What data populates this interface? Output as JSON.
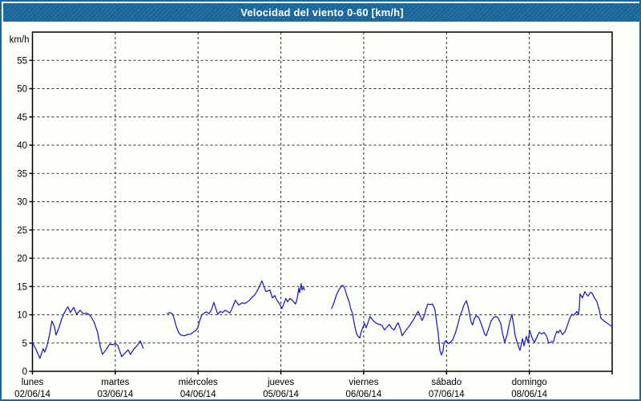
{
  "window": {
    "title": "Velocidad del viento 0-60 [km/h]"
  },
  "colors": {
    "titlebar_bg": "#19689b",
    "frame_border": "#19689b",
    "page_background": "#fcfffa",
    "plot_background": "#fcfffa",
    "axis": "#000000",
    "grid": "#2a2a2a",
    "line": "#2222c2",
    "title_text": "#ffffff",
    "label_text": "#000000"
  },
  "chart_data": {
    "type": "line",
    "title": "Velocidad del viento 0-60 [km/h]",
    "ylabel": "km/h",
    "xlabel": "",
    "ylim": [
      0,
      60
    ],
    "xlim_days": [
      0,
      7
    ],
    "grid": "dashed, horizontal every 5 km/h (5-55), vertical at each day boundary",
    "legend": "none",
    "y_ticks": [
      0,
      5,
      10,
      15,
      20,
      25,
      30,
      35,
      40,
      45,
      50,
      55
    ],
    "x_days": [
      {
        "name": "lunes",
        "date": "02/06/14"
      },
      {
        "name": "martes",
        "date": "03/06/14"
      },
      {
        "name": "miércoles",
        "date": "04/06/14"
      },
      {
        "name": "jueves",
        "date": "05/06/14"
      },
      {
        "name": "viernes",
        "date": "06/06/14"
      },
      {
        "name": "sábado",
        "date": "07/06/14"
      },
      {
        "name": "domingo",
        "date": "08/06/14"
      }
    ],
    "x_unit": "time in days, 0 = lunes 02/06/14 00:00",
    "series": [
      {
        "name": "velocidad del viento",
        "color": "#2222c2",
        "segments": [
          [
            [
              0.0,
              5.1
            ],
            [
              0.042,
              3.9
            ],
            [
              0.09,
              2.3
            ],
            [
              0.129,
              4.0
            ],
            [
              0.148,
              3.4
            ],
            [
              0.177,
              4.6
            ],
            [
              0.206,
              6.5
            ],
            [
              0.235,
              8.9
            ],
            [
              0.264,
              8.0
            ],
            [
              0.284,
              6.4
            ],
            [
              0.322,
              7.8
            ],
            [
              0.351,
              9.2
            ],
            [
              0.38,
              10.2
            ],
            [
              0.409,
              11.0
            ],
            [
              0.429,
              11.4
            ],
            [
              0.458,
              10.4
            ],
            [
              0.497,
              11.3
            ],
            [
              0.535,
              10.1
            ],
            [
              0.574,
              10.8
            ],
            [
              0.613,
              10.2
            ],
            [
              0.651,
              10.3
            ],
            [
              0.68,
              10.1
            ],
            [
              0.709,
              9.6
            ],
            [
              0.748,
              8.6
            ],
            [
              0.787,
              6.9
            ],
            [
              0.816,
              4.6
            ],
            [
              0.845,
              3.0
            ],
            [
              0.893,
              3.9
            ],
            [
              0.932,
              4.8
            ],
            [
              0.971,
              4.7
            ],
            [
              1.0,
              4.9
            ],
            [
              1.029,
              4.6
            ],
            [
              1.077,
              2.6
            ],
            [
              1.116,
              3.2
            ],
            [
              1.155,
              3.8
            ],
            [
              1.184,
              3.0
            ],
            [
              1.222,
              3.9
            ],
            [
              1.271,
              4.7
            ],
            [
              1.3,
              5.4
            ],
            [
              1.338,
              4.1
            ]
          ],
          [
            [
              1.629,
              10.2
            ],
            [
              1.658,
              10.4
            ],
            [
              1.687,
              10.2
            ],
            [
              1.706,
              9.6
            ],
            [
              1.735,
              8.0
            ],
            [
              1.764,
              6.9
            ],
            [
              1.793,
              6.4
            ],
            [
              1.832,
              6.3
            ],
            [
              1.871,
              6.5
            ],
            [
              1.91,
              6.6
            ],
            [
              1.949,
              7.0
            ],
            [
              1.978,
              7.3
            ],
            [
              1.997,
              7.7
            ],
            [
              2.016,
              8.8
            ],
            [
              2.045,
              10.0
            ],
            [
              2.074,
              10.3
            ],
            [
              2.103,
              10.5
            ],
            [
              2.132,
              10.2
            ],
            [
              2.161,
              10.9
            ],
            [
              2.19,
              12.2
            ],
            [
              2.219,
              10.9
            ],
            [
              2.239,
              10.1
            ],
            [
              2.268,
              10.6
            ],
            [
              2.297,
              10.4
            ],
            [
              2.326,
              10.8
            ],
            [
              2.355,
              10.6
            ],
            [
              2.384,
              10.3
            ],
            [
              2.413,
              11.2
            ],
            [
              2.451,
              12.6
            ],
            [
              2.49,
              11.7
            ],
            [
              2.529,
              12.1
            ],
            [
              2.568,
              12.0
            ],
            [
              2.616,
              12.5
            ],
            [
              2.645,
              13.0
            ],
            [
              2.684,
              13.5
            ],
            [
              2.713,
              14.2
            ],
            [
              2.771,
              16.0
            ],
            [
              2.79,
              15.2
            ],
            [
              2.819,
              14.1
            ],
            [
              2.868,
              14.4
            ],
            [
              2.897,
              13.0
            ],
            [
              2.926,
              13.4
            ],
            [
              2.955,
              12.5
            ],
            [
              2.984,
              11.9
            ],
            [
              3.013,
              11.1
            ],
            [
              3.042,
              12.2
            ],
            [
              3.061,
              12.9
            ],
            [
              3.081,
              12.3
            ],
            [
              3.11,
              12.9
            ],
            [
              3.139,
              12.6
            ],
            [
              3.158,
              12.2
            ],
            [
              3.177,
              11.9
            ],
            [
              3.197,
              12.9
            ],
            [
              3.216,
              14.7
            ],
            [
              3.226,
              13.9
            ],
            [
              3.245,
              15.5
            ],
            [
              3.255,
              14.4
            ],
            [
              3.274,
              14.9
            ],
            [
              3.284,
              14.4
            ]
          ],
          [
            [
              3.613,
              11.1
            ],
            [
              3.642,
              12.2
            ],
            [
              3.671,
              13.5
            ],
            [
              3.7,
              14.4
            ],
            [
              3.729,
              15.1
            ],
            [
              3.748,
              15.2
            ],
            [
              3.768,
              14.8
            ],
            [
              3.797,
              13.4
            ],
            [
              3.826,
              12.2
            ],
            [
              3.845,
              11.0
            ],
            [
              3.865,
              10.2
            ],
            [
              3.884,
              8.6
            ],
            [
              3.913,
              6.7
            ],
            [
              3.932,
              6.2
            ],
            [
              3.952,
              5.9
            ],
            [
              3.971,
              7.0
            ],
            [
              3.99,
              7.8
            ],
            [
              4.01,
              8.5
            ],
            [
              4.029,
              7.7
            ],
            [
              4.058,
              8.9
            ],
            [
              4.077,
              9.7
            ],
            [
              4.106,
              9.1
            ],
            [
              4.135,
              8.7
            ],
            [
              4.164,
              8.4
            ],
            [
              4.193,
              8.3
            ],
            [
              4.222,
              8.1
            ],
            [
              4.251,
              7.3
            ],
            [
              4.28,
              7.8
            ],
            [
              4.309,
              8.3
            ],
            [
              4.338,
              7.6
            ],
            [
              4.367,
              7.3
            ],
            [
              4.397,
              8.2
            ],
            [
              4.416,
              8.6
            ],
            [
              4.445,
              7.4
            ],
            [
              4.464,
              6.3
            ],
            [
              4.493,
              6.9
            ],
            [
              4.522,
              7.5
            ],
            [
              4.551,
              8.0
            ],
            [
              4.58,
              8.7
            ],
            [
              4.609,
              9.3
            ],
            [
              4.638,
              10.2
            ],
            [
              4.658,
              10.6
            ],
            [
              4.687,
              9.6
            ],
            [
              4.706,
              9.0
            ],
            [
              4.735,
              10.0
            ],
            [
              4.754,
              11.1
            ],
            [
              4.774,
              11.9
            ],
            [
              4.803,
              11.8
            ],
            [
              4.832,
              11.9
            ],
            [
              4.861,
              10.9
            ],
            [
              4.88,
              8.7
            ],
            [
              4.9,
              6.6
            ],
            [
              4.919,
              3.8
            ],
            [
              4.938,
              2.9
            ],
            [
              4.958,
              3.6
            ],
            [
              4.967,
              4.8
            ],
            [
              4.987,
              5.4
            ],
            [
              5.006,
              5.2
            ],
            [
              5.026,
              4.9
            ],
            [
              5.055,
              5.3
            ],
            [
              5.074,
              5.5
            ],
            [
              5.103,
              6.6
            ],
            [
              5.132,
              8.0
            ],
            [
              5.161,
              9.7
            ],
            [
              5.19,
              10.8
            ],
            [
              5.21,
              11.7
            ],
            [
              5.239,
              12.5
            ],
            [
              5.258,
              11.6
            ],
            [
              5.277,
              10.2
            ],
            [
              5.297,
              8.7
            ],
            [
              5.316,
              8.2
            ],
            [
              5.335,
              9.3
            ],
            [
              5.355,
              9.8
            ],
            [
              5.374,
              9.7
            ],
            [
              5.393,
              9.4
            ],
            [
              5.413,
              8.6
            ],
            [
              5.442,
              7.4
            ],
            [
              5.461,
              6.6
            ],
            [
              5.48,
              6.3
            ],
            [
              5.509,
              7.6
            ],
            [
              5.538,
              8.9
            ],
            [
              5.567,
              9.5
            ],
            [
              5.597,
              9.7
            ],
            [
              5.626,
              9.4
            ],
            [
              5.655,
              8.4
            ],
            [
              5.674,
              6.9
            ],
            [
              5.703,
              5.1
            ],
            [
              5.732,
              6.5
            ],
            [
              5.761,
              8.6
            ],
            [
              5.79,
              10.1
            ],
            [
              5.81,
              8.3
            ],
            [
              5.829,
              6.3
            ],
            [
              5.858,
              4.9
            ],
            [
              5.887,
              3.7
            ],
            [
              5.906,
              5.0
            ],
            [
              5.916,
              5.8
            ],
            [
              5.935,
              4.5
            ],
            [
              5.964,
              6.2
            ],
            [
              5.984,
              5.1
            ],
            [
              6.003,
              7.3
            ],
            [
              6.022,
              6.4
            ],
            [
              6.042,
              5.6
            ],
            [
              6.061,
              5.1
            ],
            [
              6.09,
              6.0
            ],
            [
              6.119,
              6.9
            ],
            [
              6.148,
              6.6
            ],
            [
              6.177,
              6.9
            ],
            [
              6.206,
              6.3
            ],
            [
              6.235,
              5.0
            ],
            [
              6.264,
              5.2
            ],
            [
              6.293,
              5.3
            ],
            [
              6.313,
              6.4
            ],
            [
              6.332,
              7.1
            ],
            [
              6.351,
              6.8
            ],
            [
              6.371,
              7.3
            ],
            [
              6.4,
              6.5
            ],
            [
              6.429,
              7.0
            ],
            [
              6.448,
              7.6
            ],
            [
              6.477,
              8.9
            ],
            [
              6.496,
              9.6
            ],
            [
              6.516,
              10.1
            ],
            [
              6.535,
              9.9
            ],
            [
              6.554,
              10.2
            ],
            [
              6.574,
              10.6
            ],
            [
              6.593,
              10.0
            ],
            [
              6.603,
              11.2
            ],
            [
              6.612,
              13.7
            ],
            [
              6.641,
              13.0
            ],
            [
              6.67,
              14.1
            ],
            [
              6.69,
              13.6
            ],
            [
              6.709,
              13.3
            ],
            [
              6.738,
              14.0
            ],
            [
              6.758,
              13.8
            ],
            [
              6.787,
              13.0
            ],
            [
              6.816,
              12.3
            ],
            [
              6.845,
              10.8
            ],
            [
              6.864,
              9.4
            ],
            [
              6.903,
              8.9
            ],
            [
              6.932,
              8.6
            ],
            [
              6.961,
              8.3
            ],
            [
              6.99,
              8.0
            ]
          ]
        ]
      }
    ]
  }
}
